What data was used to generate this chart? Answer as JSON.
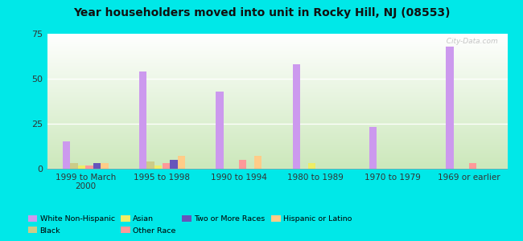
{
  "title": "Year householders moved into unit in Rocky Hill, NJ (08553)",
  "categories": [
    "1999 to March\n2000",
    "1995 to 1998",
    "1990 to 1994",
    "1980 to 1989",
    "1970 to 1979",
    "1969 or earlier"
  ],
  "series_order": [
    "White Non-Hispanic",
    "Black",
    "Asian",
    "Other Race",
    "Two or More Races",
    "Hispanic or Latino"
  ],
  "series": {
    "White Non-Hispanic": [
      15,
      54,
      43,
      58,
      23,
      68
    ],
    "Black": [
      3,
      4,
      0,
      0,
      0,
      0
    ],
    "Asian": [
      2,
      2,
      0,
      3,
      0,
      0
    ],
    "Other Race": [
      2,
      3,
      5,
      0,
      0,
      3
    ],
    "Two or More Races": [
      3,
      5,
      0,
      0,
      0,
      0
    ],
    "Hispanic or Latino": [
      3,
      7,
      7,
      0,
      0,
      0
    ]
  },
  "colors": {
    "White Non-Hispanic": "#cc99ee",
    "Black": "#cccc88",
    "Asian": "#eeee66",
    "Other Race": "#ff9999",
    "Two or More Races": "#6655bb",
    "Hispanic or Latino": "#ffcc88"
  },
  "bar_width": 0.1,
  "ylim": [
    0,
    75
  ],
  "yticks": [
    0,
    25,
    50,
    75
  ],
  "background_color": "#00e8e8",
  "plot_bg_top": "#ffffff",
  "plot_bg_bottom": "#cce8bb",
  "watermark": "  City-Data.com"
}
